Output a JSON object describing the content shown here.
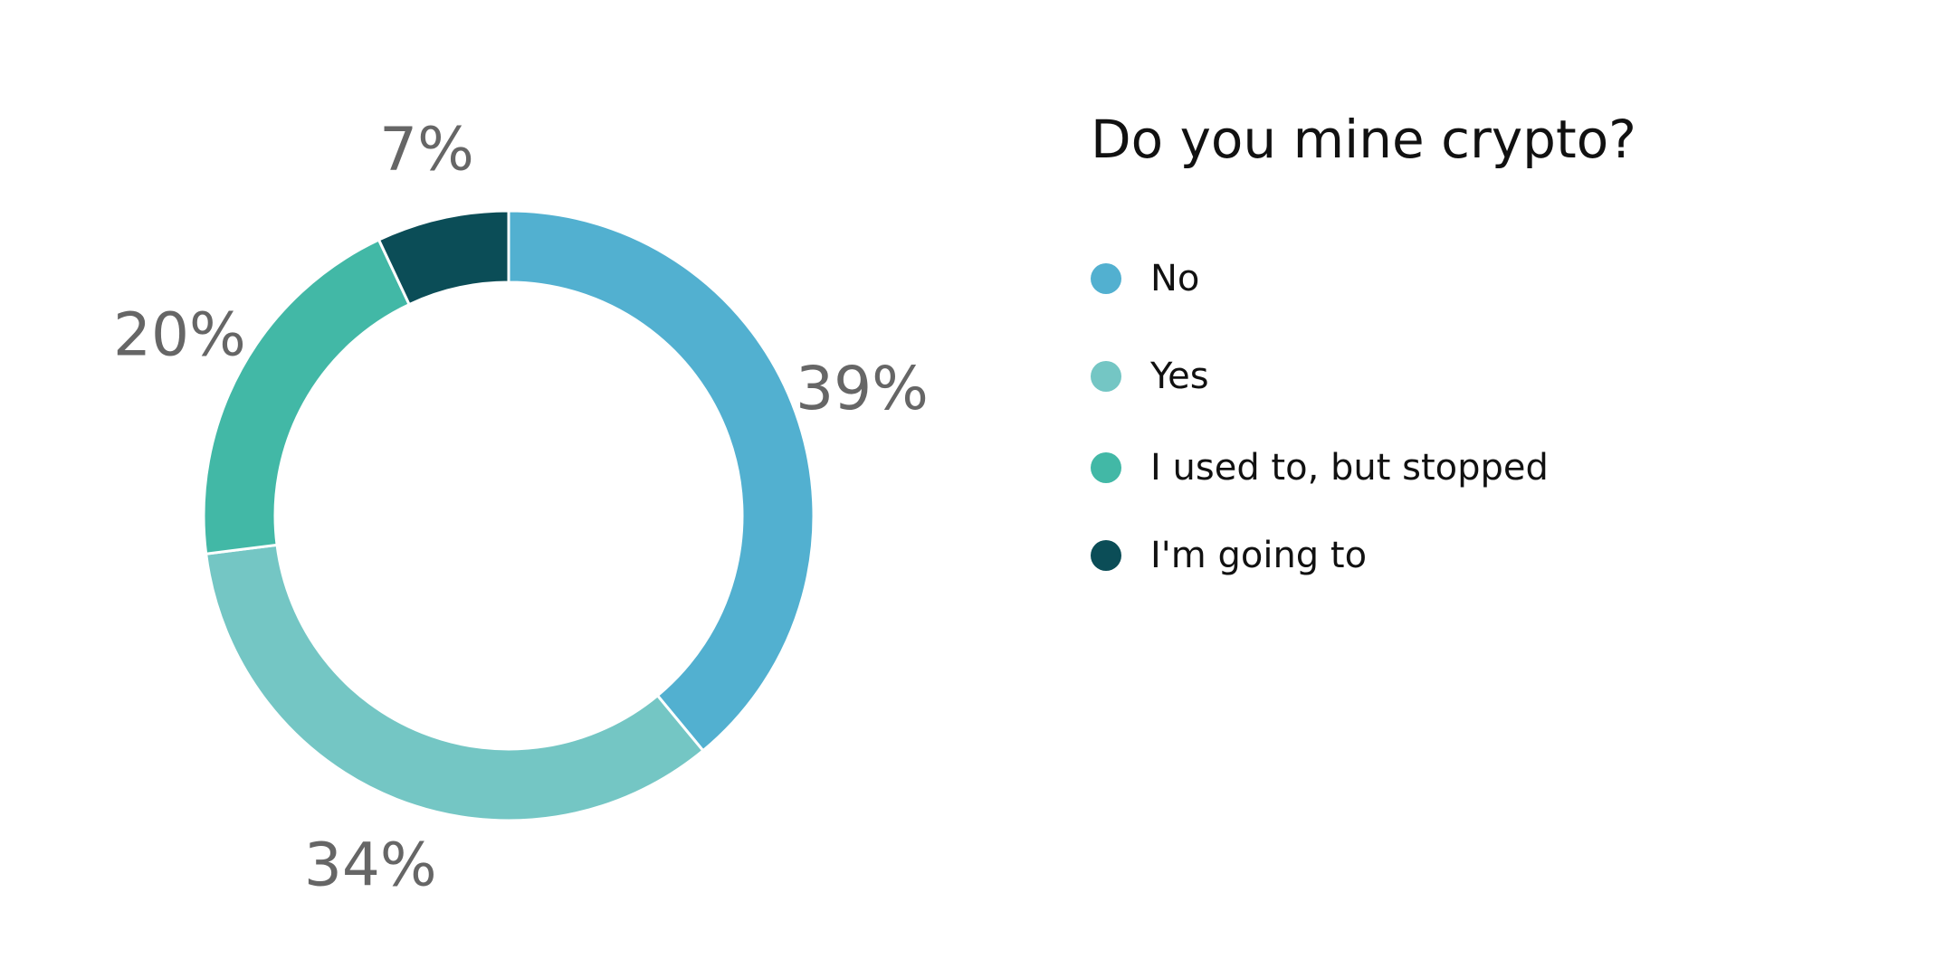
{
  "chart_data": {
    "type": "pie",
    "variant": "donut",
    "title": "Do you mine crypto?",
    "legend_position": "right",
    "slices": [
      {
        "name": "No",
        "value": 39,
        "label": "39%",
        "color": "#52b0d0"
      },
      {
        "name": "Yes",
        "value": 34,
        "label": "34%",
        "color": "#74c6c4"
      },
      {
        "name": "I used to, but stopped",
        "value": 20,
        "label": "20%",
        "color": "#42b8a6"
      },
      {
        "name": "I'm going to",
        "value": 7,
        "label": "7%",
        "color": "#0b4d57"
      }
    ]
  }
}
